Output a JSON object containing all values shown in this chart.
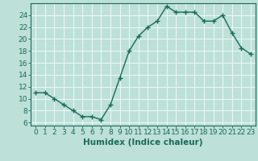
{
  "x": [
    0,
    1,
    2,
    3,
    4,
    5,
    6,
    7,
    8,
    9,
    10,
    11,
    12,
    13,
    14,
    15,
    16,
    17,
    18,
    19,
    20,
    21,
    22,
    23
  ],
  "y": [
    11,
    11,
    10,
    9,
    8,
    7,
    7,
    6.5,
    9,
    13.5,
    18,
    20.5,
    22,
    23,
    25.5,
    24.5,
    24.5,
    24.5,
    23,
    23,
    24,
    21,
    18.5,
    17.5
  ],
  "line_color": "#1a6b5a",
  "marker": "+",
  "marker_color": "#1a6b5a",
  "bg_color": "#bde0d8",
  "grid_color": "#e8f8f4",
  "xlabel": "Humidex (Indice chaleur)",
  "xlim": [
    -0.5,
    23.5
  ],
  "ylim": [
    5.5,
    26
  ],
  "yticks": [
    6,
    8,
    10,
    12,
    14,
    16,
    18,
    20,
    22,
    24
  ],
  "xticks": [
    0,
    1,
    2,
    3,
    4,
    5,
    6,
    7,
    8,
    9,
    10,
    11,
    12,
    13,
    14,
    15,
    16,
    17,
    18,
    19,
    20,
    21,
    22,
    23
  ],
  "xlabel_fontsize": 7.5,
  "tick_fontsize": 6.5,
  "line_width": 1.0,
  "marker_size": 4
}
